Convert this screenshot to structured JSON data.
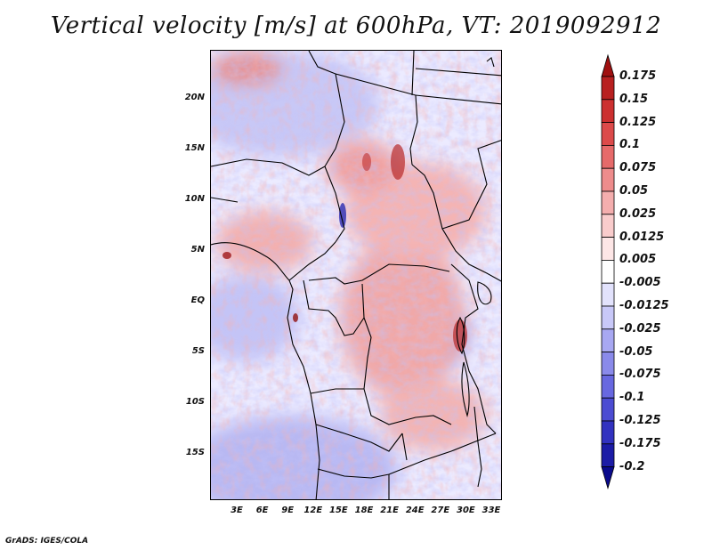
{
  "title": "Vertical velocity [m/s] at 600hPa, VT: 2019092912",
  "footer": "GrADS: IGES/COLA",
  "map": {
    "lat_labels": [
      "20N",
      "15N",
      "10N",
      "5N",
      "EQ",
      "5S",
      "10S",
      "15S"
    ],
    "lon_labels": [
      "3E",
      "6E",
      "9E",
      "12E",
      "15E",
      "18E",
      "21E",
      "24E",
      "27E",
      "30E",
      "33E"
    ]
  },
  "colorbar": {
    "labels": [
      "0.175",
      "0.15",
      "0.125",
      "0.1",
      "0.075",
      "0.05",
      "0.025",
      "0.0125",
      "0.005",
      "-0.005",
      "-0.0125",
      "-0.025",
      "-0.05",
      "-0.075",
      "-0.1",
      "-0.125",
      "-0.175",
      "-0.2"
    ],
    "colors": [
      "#a01010",
      "#b82020",
      "#cc3030",
      "#dc4a4a",
      "#e66a6a",
      "#ee8c8c",
      "#f4aeae",
      "#f9cccc",
      "#fde6e6",
      "#ffffff",
      "#e2e2fc",
      "#c8c8f8",
      "#a8a8f2",
      "#8a8aea",
      "#6868e0",
      "#4c4cd2",
      "#3232c0",
      "#1c1ca6",
      "#0a0a8c"
    ]
  }
}
